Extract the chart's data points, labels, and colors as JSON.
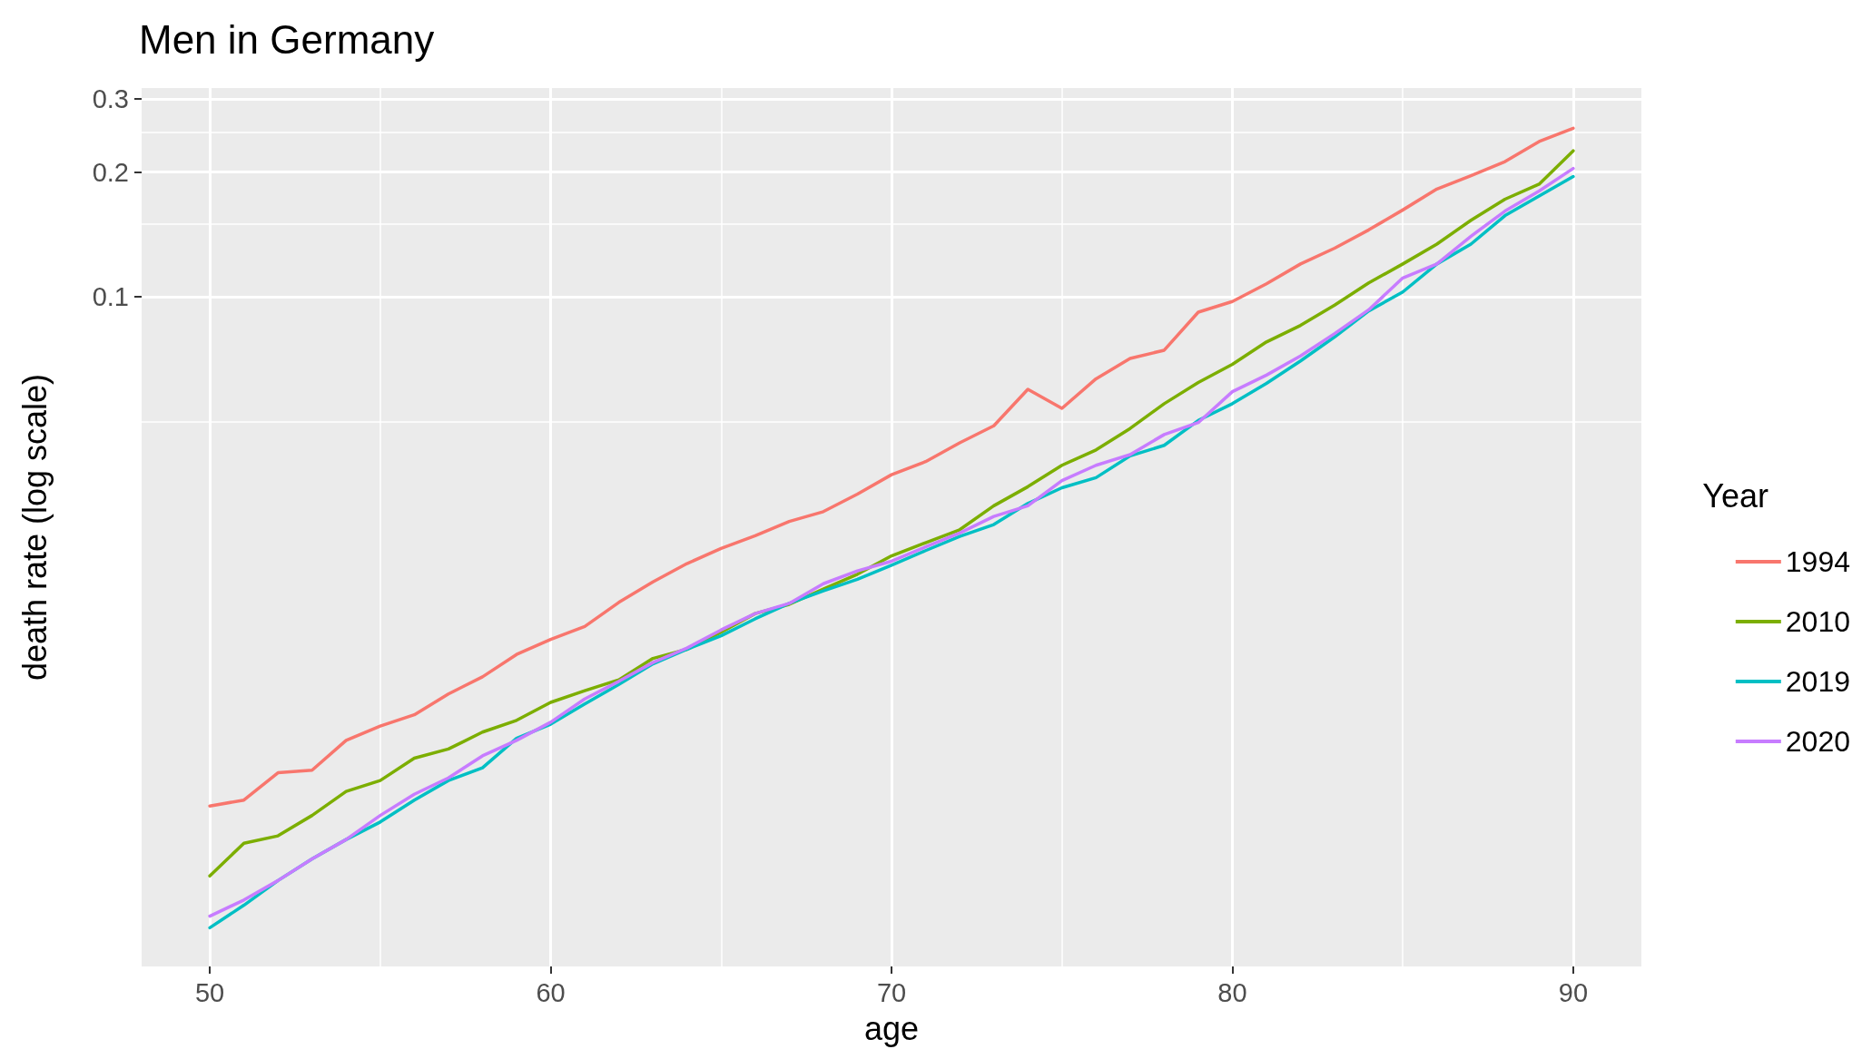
{
  "chart_data": {
    "type": "line",
    "title": "Men in Germany",
    "xlabel": "age",
    "ylabel": "death rate (log scale)",
    "legend_title": "Year",
    "legend": "right",
    "grid": true,
    "log": "y",
    "marker": "none",
    "line_style": "solid",
    "x": [
      50,
      51,
      52,
      53,
      54,
      55,
      56,
      57,
      58,
      59,
      60,
      61,
      62,
      63,
      64,
      65,
      66,
      67,
      68,
      69,
      70,
      71,
      72,
      73,
      74,
      75,
      76,
      77,
      78,
      79,
      80,
      81,
      82,
      83,
      84,
      85,
      86,
      87,
      88,
      89,
      90
    ],
    "xlim": [
      48,
      92
    ],
    "xticks": [
      50,
      {
        "value": 55,
        "label": null
      },
      60,
      {
        "value": 65,
        "label": null
      },
      70,
      {
        "value": 75,
        "label": null
      },
      80,
      {
        "value": 85,
        "label": null
      },
      90
    ],
    "ylim": [
      0.00242,
      0.319
    ],
    "yticks": [
      {
        "value": 0.05,
        "label": null
      },
      0.1,
      {
        "value": 0.15,
        "label": null
      },
      0.2,
      {
        "value": 0.25,
        "label": null
      },
      0.3
    ],
    "series": [
      {
        "name": "1994",
        "color": "#f8766d",
        "values": [
          0.0059,
          0.0061,
          0.0071,
          0.0072,
          0.0085,
          0.0092,
          0.0098,
          0.011,
          0.0121,
          0.0137,
          0.0149,
          0.016,
          0.0183,
          0.0205,
          0.0227,
          0.0247,
          0.0265,
          0.0287,
          0.0303,
          0.0334,
          0.0372,
          0.04,
          0.0444,
          0.0488,
          0.0598,
          0.0538,
          0.0634,
          0.071,
          0.0743,
          0.0918,
          0.0974,
          0.1075,
          0.12,
          0.131,
          0.145,
          0.162,
          0.182,
          0.196,
          0.212,
          0.237,
          0.255
        ]
      },
      {
        "name": "2010",
        "color": "#7cae00",
        "values": [
          0.004,
          0.0048,
          0.005,
          0.0056,
          0.0064,
          0.0068,
          0.0077,
          0.0081,
          0.0089,
          0.0095,
          0.0105,
          0.0112,
          0.0119,
          0.0134,
          0.0141,
          0.0155,
          0.0172,
          0.0181,
          0.0197,
          0.0214,
          0.0237,
          0.0255,
          0.0274,
          0.0313,
          0.0348,
          0.0392,
          0.0427,
          0.0481,
          0.0552,
          0.0621,
          0.0687,
          0.0778,
          0.0853,
          0.0955,
          0.108,
          0.12,
          0.134,
          0.153,
          0.172,
          0.187,
          0.225
        ]
      },
      {
        "name": "2019",
        "color": "#00bfc4",
        "values": [
          0.003,
          0.0034,
          0.0039,
          0.0044,
          0.0049,
          0.0054,
          0.0061,
          0.0068,
          0.0073,
          0.0086,
          0.0093,
          0.0104,
          0.0116,
          0.013,
          0.0141,
          0.0152,
          0.0167,
          0.0182,
          0.0195,
          0.0208,
          0.0225,
          0.0244,
          0.0264,
          0.0282,
          0.0317,
          0.0346,
          0.0366,
          0.0413,
          0.0438,
          0.0503,
          0.0552,
          0.0618,
          0.07,
          0.08,
          0.0924,
          0.1027,
          0.12,
          0.134,
          0.157,
          0.175,
          0.195
        ]
      },
      {
        "name": "2020",
        "color": "#c77cff",
        "values": [
          0.0032,
          0.0035,
          0.0039,
          0.0044,
          0.0049,
          0.0056,
          0.0063,
          0.0069,
          0.0078,
          0.0085,
          0.0094,
          0.0107,
          0.0118,
          0.0131,
          0.0142,
          0.0157,
          0.0172,
          0.0182,
          0.0203,
          0.0218,
          0.023,
          0.0249,
          0.0269,
          0.0295,
          0.0313,
          0.036,
          0.0392,
          0.0416,
          0.0465,
          0.0497,
          0.059,
          0.0647,
          0.072,
          0.0815,
          0.093,
          0.111,
          0.12,
          0.14,
          0.161,
          0.18,
          0.204
        ]
      }
    ]
  }
}
